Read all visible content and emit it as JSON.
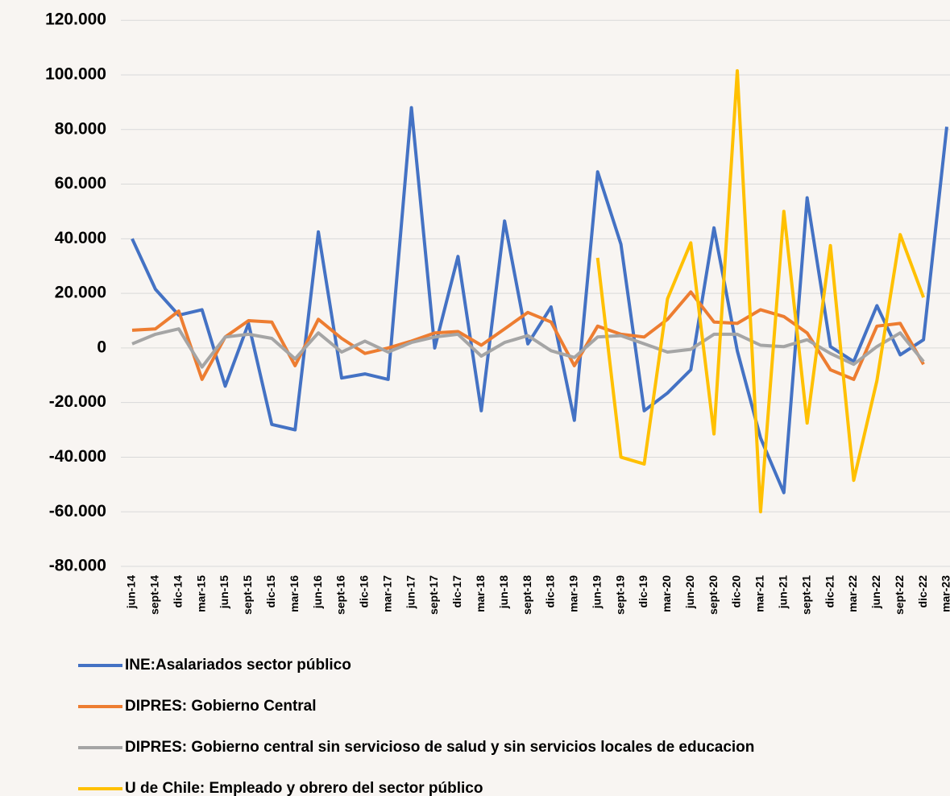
{
  "chart_data": {
    "type": "line",
    "categories": [
      "jun-14",
      "sept-14",
      "dic-14",
      "mar-15",
      "jun-15",
      "sept-15",
      "dic-15",
      "mar-16",
      "jun-16",
      "sept-16",
      "dic-16",
      "mar-17",
      "jun-17",
      "sept-17",
      "dic-17",
      "mar-18",
      "jun-18",
      "sept-18",
      "dic-18",
      "mar-19",
      "jun-19",
      "sept-19",
      "dic-19",
      "mar-20",
      "jun-20",
      "sept-20",
      "dic-20",
      "mar-21",
      "jun-21",
      "sept-21",
      "dic-21",
      "mar-22",
      "jun-22",
      "sept-22",
      "dic-22",
      "mar-23"
    ],
    "series": [
      {
        "name": "INE:Asalariados sector público",
        "color": "#4472c4",
        "values": [
          40000,
          21500,
          12000,
          14000,
          -14000,
          9000,
          -28000,
          -30000,
          42500,
          -11000,
          -9500,
          -11500,
          88000,
          0,
          33500,
          -23000,
          46500,
          1500,
          15000,
          -26500,
          64500,
          38000,
          -23000,
          -16500,
          -8000,
          44000,
          -1000,
          -33000,
          -53000,
          55000,
          500,
          -5000,
          15500,
          -2500,
          3000,
          81000
        ]
      },
      {
        "name": "DIPRES: Gobierno Central",
        "color": "#ed7d31",
        "values": [
          6500,
          7000,
          13500,
          -11500,
          4000,
          10000,
          9500,
          -6500,
          10500,
          3500,
          -2000,
          0,
          2500,
          5500,
          6000,
          1000,
          7000,
          13000,
          9500,
          -6500,
          8000,
          5000,
          4000,
          10500,
          20500,
          9500,
          9000,
          14000,
          11500,
          5500,
          -8000,
          -11500,
          8000,
          9000,
          -6000,
          null
        ]
      },
      {
        "name": "DIPRES: Gobierno central sin servicioso de salud y sin servicios locales de educacion",
        "color": "#a5a5a5",
        "values": [
          1500,
          5000,
          7000,
          -7000,
          4000,
          5000,
          3500,
          -4000,
          5500,
          -1500,
          2500,
          -1500,
          2000,
          4000,
          5000,
          -3000,
          2000,
          4500,
          -1000,
          -3500,
          4000,
          4500,
          1500,
          -1500,
          -500,
          5000,
          5000,
          1000,
          500,
          3000,
          -2000,
          -6000,
          500,
          5500,
          -5000,
          null
        ]
      },
      {
        "name": "U de Chile: Empleado y obrero del sector público",
        "color": "#ffc000",
        "values": [
          null,
          null,
          null,
          null,
          null,
          null,
          null,
          null,
          null,
          null,
          null,
          null,
          null,
          null,
          null,
          null,
          null,
          null,
          null,
          null,
          33000,
          -40000,
          -42500,
          18000,
          38500,
          -31500,
          101500,
          -60000,
          50000,
          -27500,
          37500,
          -48500,
          -12000,
          41500,
          18500,
          null
        ]
      }
    ],
    "ylim": [
      -80000,
      120000
    ],
    "yticks": [
      {
        "value": -80000,
        "label": "-80.000"
      },
      {
        "value": -60000,
        "label": "-60.000"
      },
      {
        "value": -40000,
        "label": "-40.000"
      },
      {
        "value": -20000,
        "label": "-20.000"
      },
      0,
      {
        "value": 20000,
        "label": "20.000"
      },
      {
        "value": 40000,
        "label": "40.000"
      },
      {
        "value": 60000,
        "label": "60.000"
      },
      {
        "value": 80000,
        "label": "80.000"
      },
      {
        "value": 100000,
        "label": "100.000"
      },
      {
        "value": 120000,
        "label": "120.000"
      }
    ],
    "grid": true,
    "legend": "bottom"
  }
}
